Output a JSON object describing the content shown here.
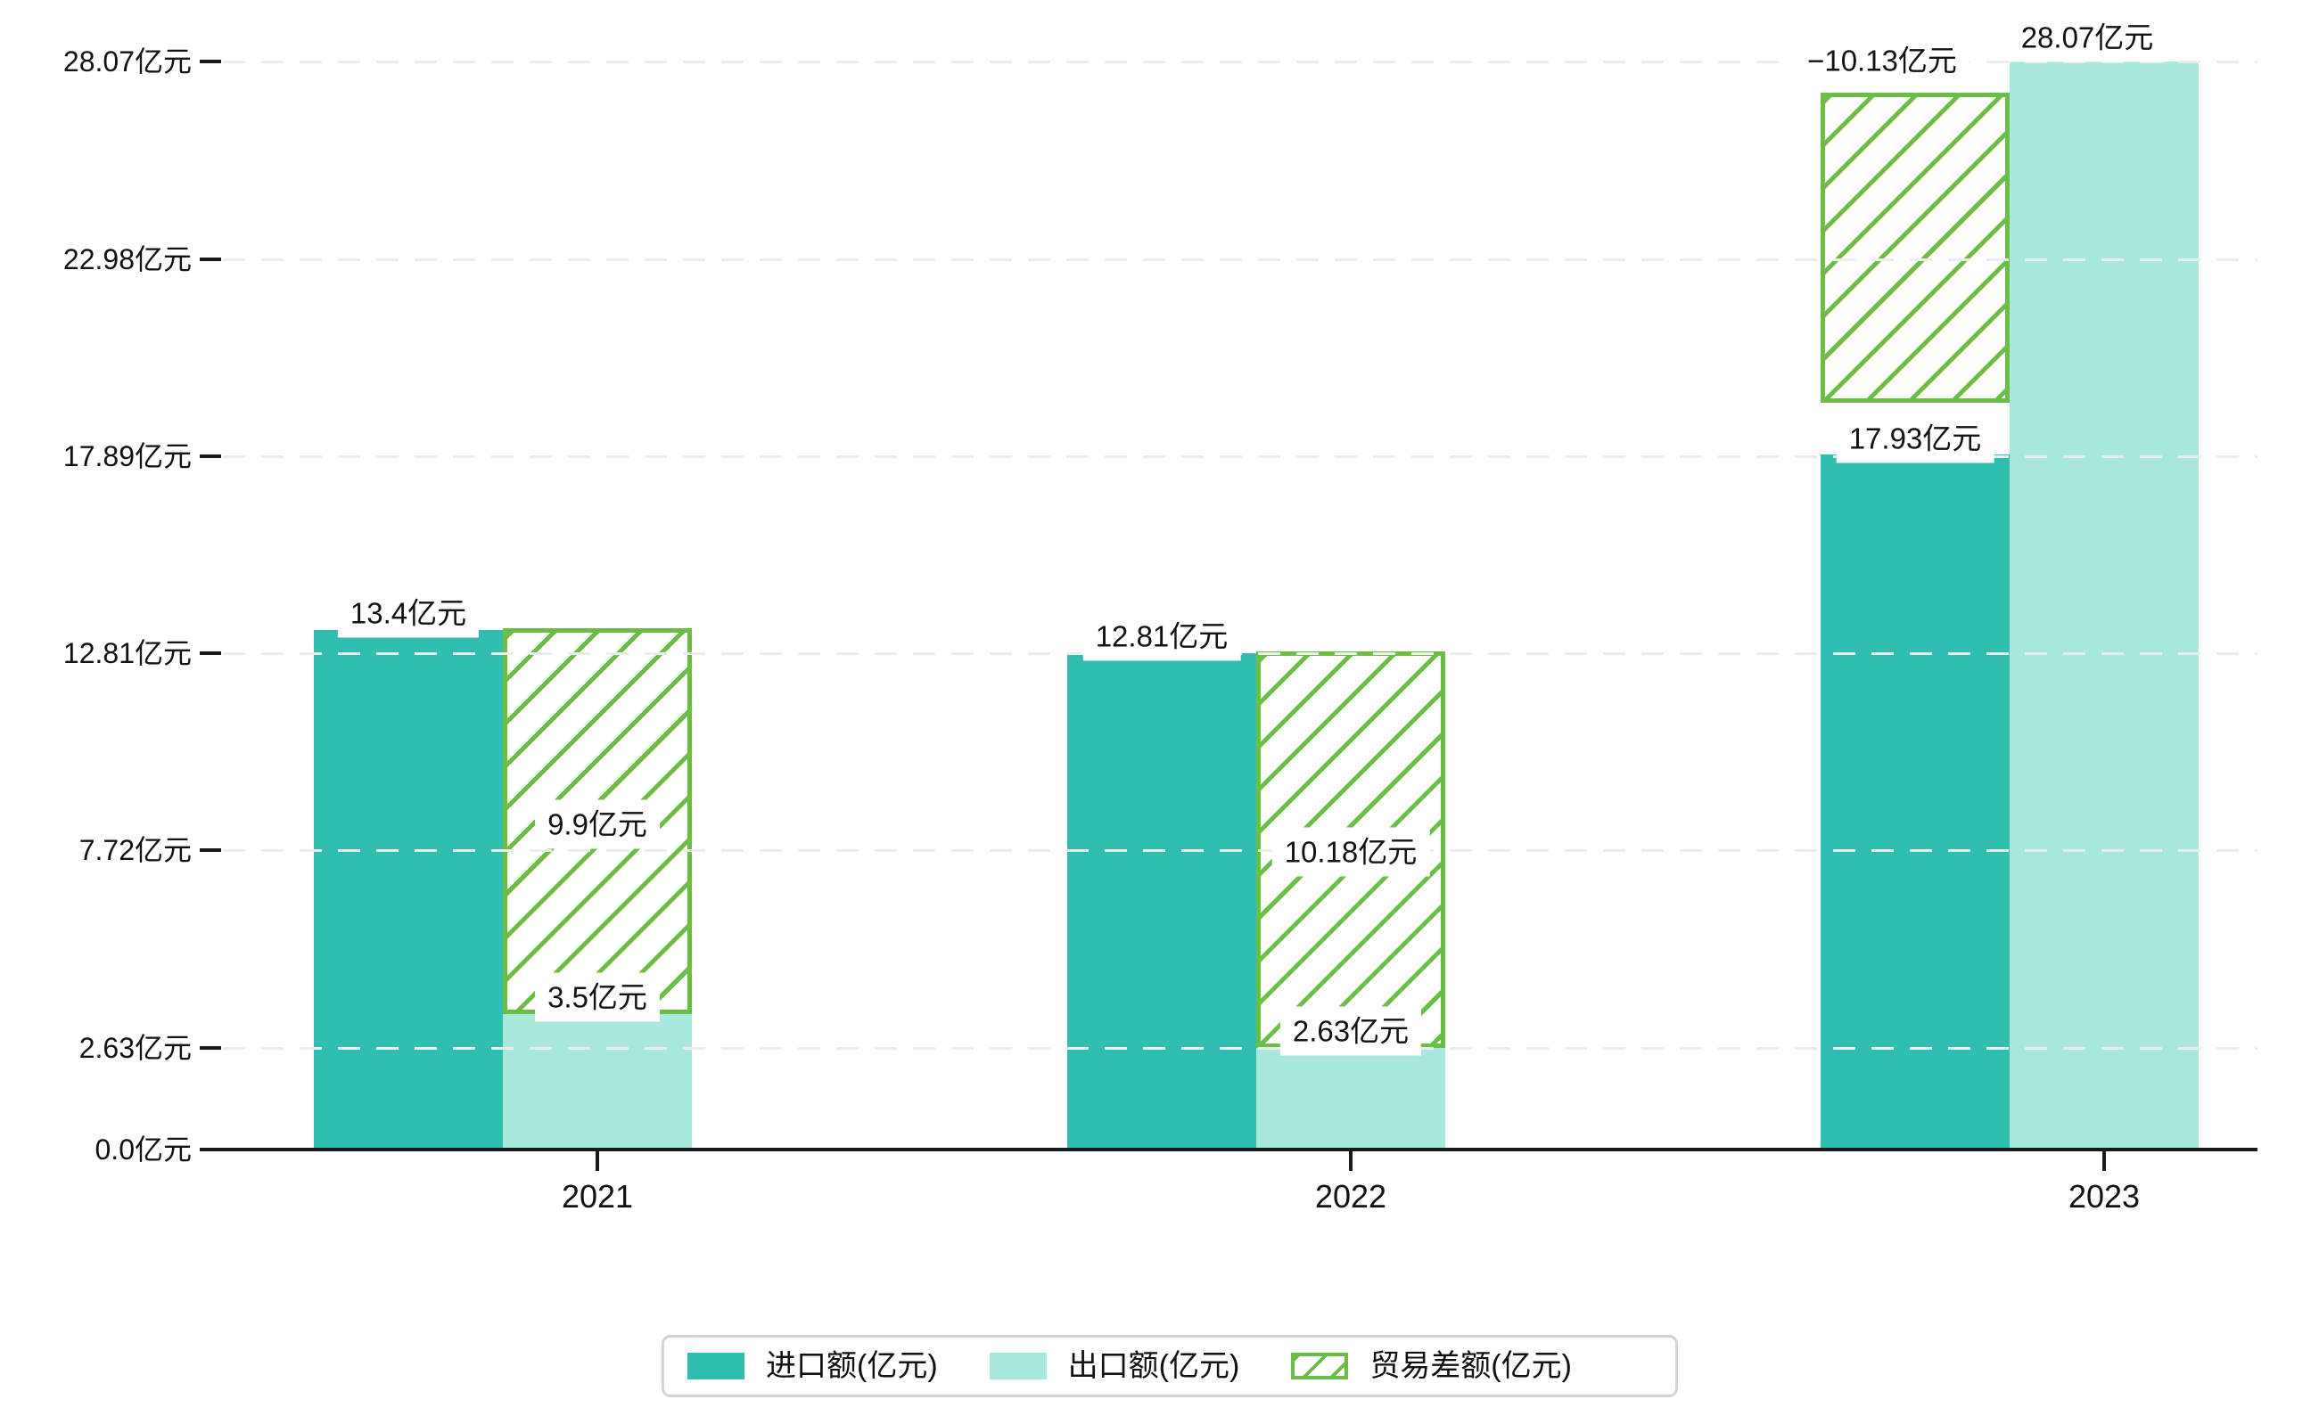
{
  "chart_data": {
    "type": "bar",
    "categories": [
      "2021",
      "2022",
      "2023"
    ],
    "series": [
      {
        "name": "进口额(亿元)",
        "values": [
          13.4,
          12.81,
          17.93
        ],
        "color": "#30beb0",
        "style": "solid",
        "labels": [
          "13.4亿元",
          "12.81亿元",
          "17.93亿元"
        ]
      },
      {
        "name": "出口额(亿元)",
        "values": [
          3.5,
          2.63,
          28.07
        ],
        "color": "#a9e8dd",
        "style": "solid",
        "labels": [
          "3.5亿元",
          "2.63亿元",
          "28.07亿元"
        ]
      },
      {
        "name": "贸易差额(亿元)",
        "values": [
          9.9,
          10.18,
          -10.13
        ],
        "color": "#6abd45",
        "style": "hatched",
        "labels": [
          "9.9亿元",
          "10.18亿元",
          "−10.13亿元"
        ]
      }
    ],
    "unit": "亿元",
    "y_ticks": [
      {
        "value": 0.0,
        "label": "0.0亿元"
      },
      {
        "value": 2.63,
        "label": "2.63亿元"
      },
      {
        "value": 7.72,
        "label": "7.72亿元"
      },
      {
        "value": 12.81,
        "label": "12.81亿元"
      },
      {
        "value": 17.89,
        "label": "17.89亿元"
      },
      {
        "value": 22.98,
        "label": "22.98亿元"
      },
      {
        "value": 28.07,
        "label": "28.07亿元"
      }
    ],
    "ylim": [
      0,
      28.07
    ],
    "xlabel": "",
    "ylabel": "",
    "title": "",
    "grid": "horizontal-dashed-over-bars",
    "legend_position": "bottom-center",
    "colors": {
      "import": "#30beb0",
      "export": "#a9e8dd",
      "balance": "#6abd45",
      "gridline": "#ececec",
      "axis": "#1a1a1a",
      "text": "#111111",
      "legend_border": "#d4d4d4",
      "background": "#ffffff"
    }
  }
}
